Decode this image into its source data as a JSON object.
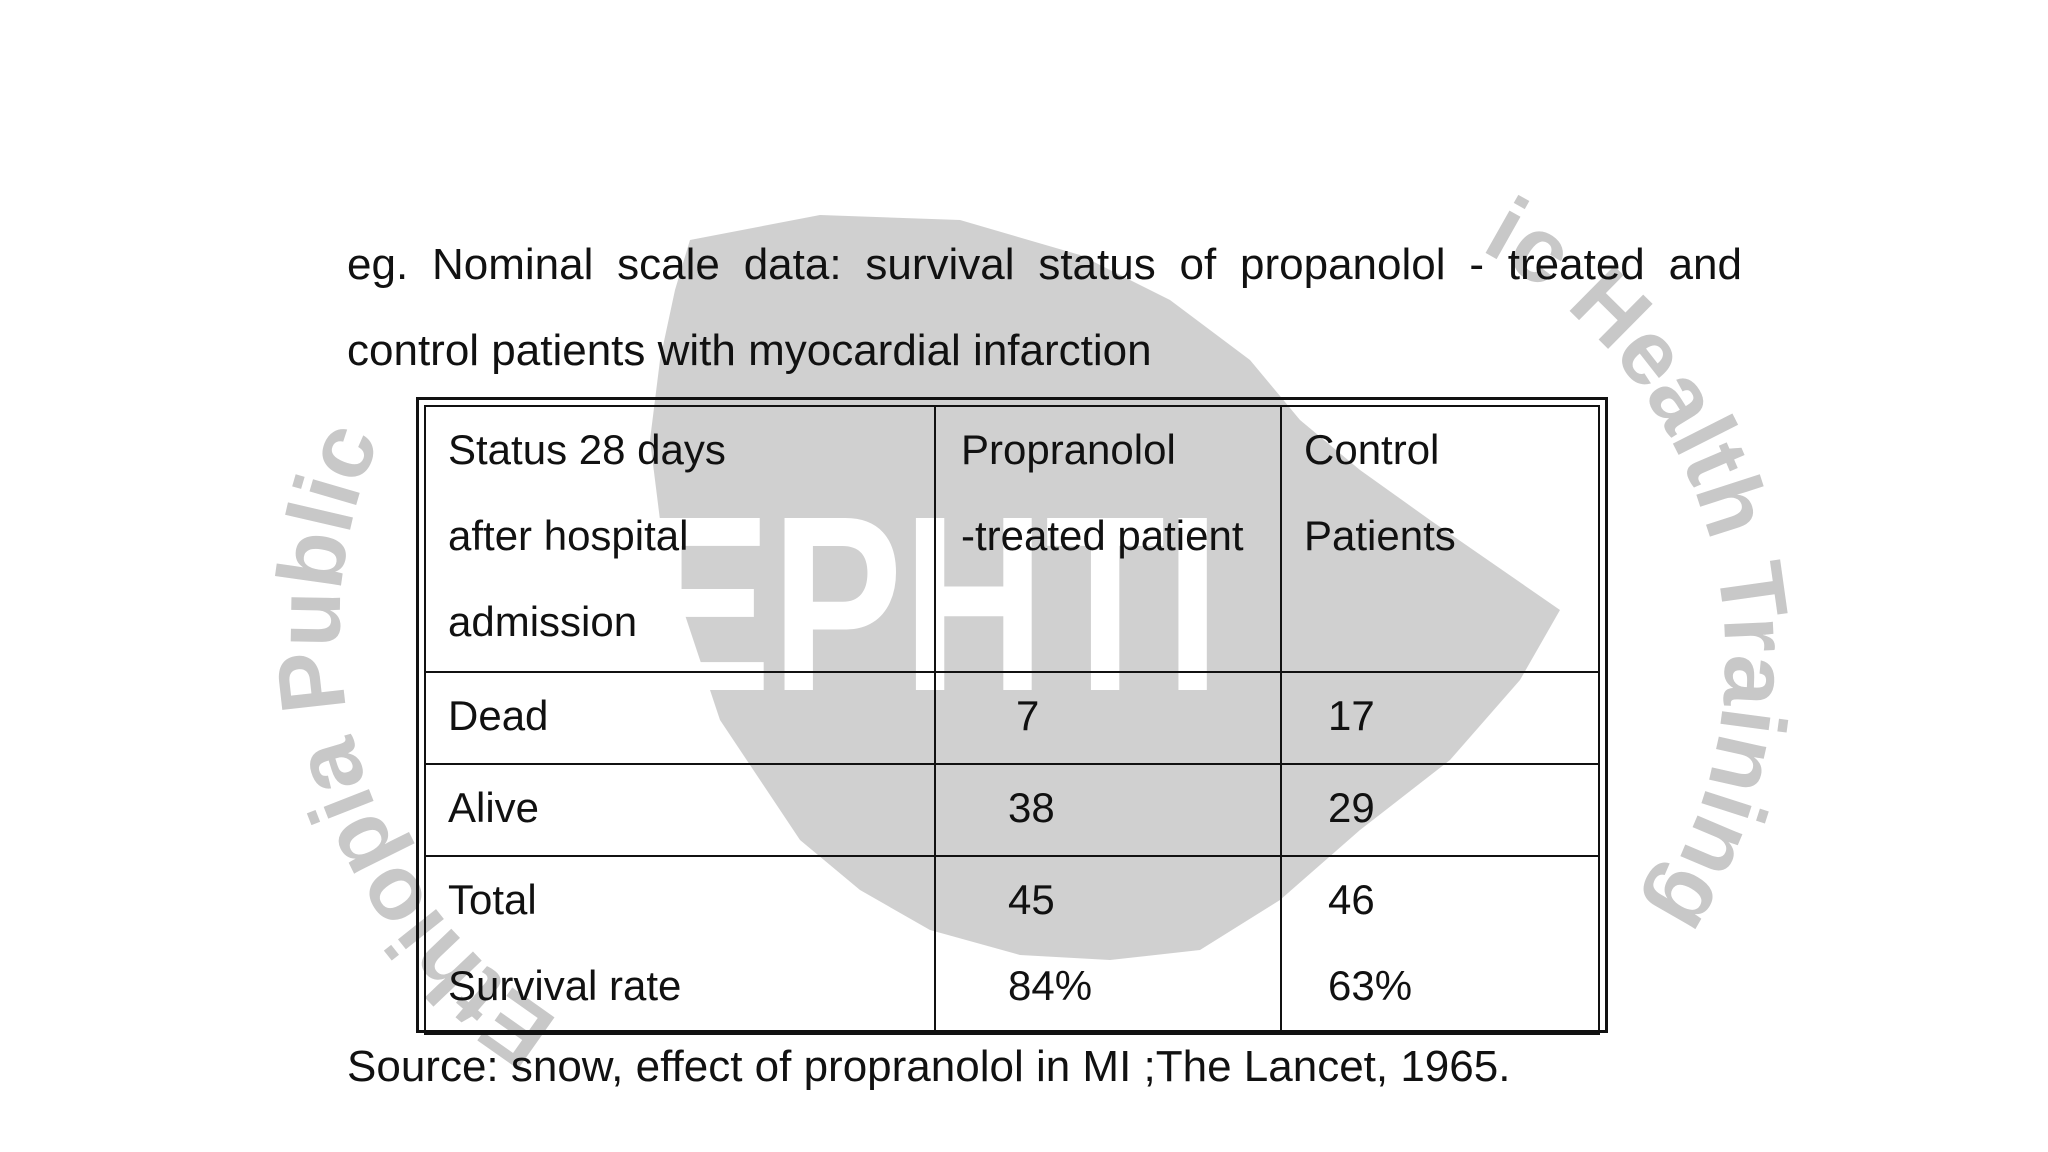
{
  "intro": {
    "text": "eg. Nominal scale data: survival status of propanolol - treated and control patients with myocardial infarction"
  },
  "watermark": {
    "text": "EPHTI",
    "arc_right": "ic Health Training",
    "arc_left": "Ethiopia Public",
    "color": "#c8c8c8"
  },
  "table": {
    "header": {
      "col1_lines": [
        "Status 28 days",
        "after hospital",
        "admission"
      ],
      "col2_lines": [
        "Propranolol",
        "-treated patient"
      ],
      "col3_lines": [
        "Control",
        "Patients"
      ]
    },
    "rows": [
      {
        "label": "Dead",
        "propranolol": "7",
        "control": "17"
      },
      {
        "label": "Alive",
        "propranolol": "38",
        "control": "29"
      }
    ],
    "total": {
      "label": "Total",
      "propranolol": "45",
      "control": "46"
    },
    "survival": {
      "label": "Survival rate",
      "propranolol": "84%",
      "control": "63%"
    }
  },
  "source": {
    "text": "Source: snow, effect of propranolol in MI  ;The Lancet, 1965."
  }
}
